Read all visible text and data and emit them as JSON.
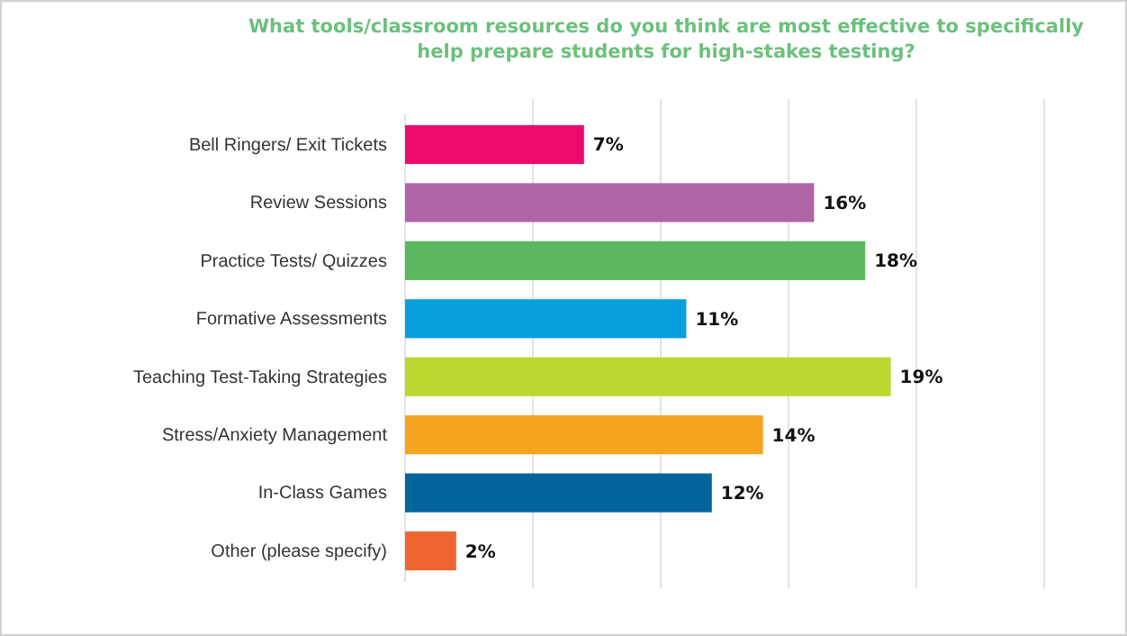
{
  "chart_data": {
    "type": "bar",
    "orientation": "horizontal",
    "title": "What tools/classroom resources do you think are most effective to specifically help prepare students for high-stakes testing?",
    "categories": [
      "Bell Ringers/ Exit Tickets",
      "Review Sessions",
      "Practice Tests/ Quizzes",
      "Formative Assessments",
      "Teaching Test-Taking Strategies",
      "Stress/Anxiety Management",
      "In-Class Games",
      "Other (please specify)"
    ],
    "values": [
      7,
      16,
      18,
      11,
      19,
      14,
      12,
      2
    ],
    "colors": [
      "#ec0b6c",
      "#b064a8",
      "#5cb85c",
      "#069fdb",
      "#bed630",
      "#f6a31e",
      "#04649c",
      "#ef6531"
    ],
    "value_labels": [
      "7%",
      "16%",
      "18%",
      "11%",
      "19%",
      "14%",
      "12%",
      "2%"
    ],
    "xlim": [
      0,
      25
    ],
    "xticks": [
      {
        "value": 0,
        "label": null
      },
      {
        "value": 5,
        "label": null
      },
      {
        "value": 10,
        "label": null
      },
      {
        "value": 15,
        "label": null
      },
      {
        "value": 20,
        "label": null
      },
      {
        "value": 25,
        "label": null
      }
    ],
    "grid": "x",
    "tick_labels": "y"
  }
}
